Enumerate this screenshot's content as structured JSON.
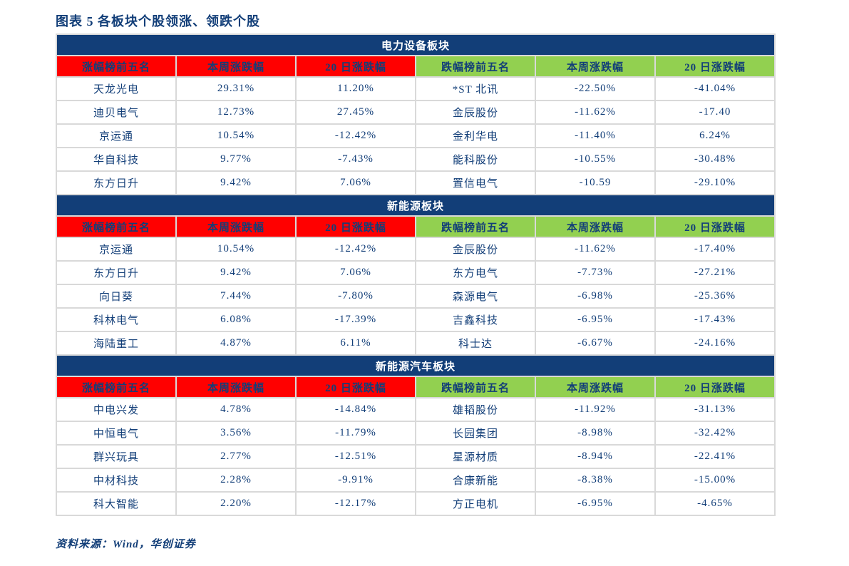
{
  "page": {
    "title": "图表 5 各板块个股领涨、领跌个股",
    "source_note": "资料来源：Wind，华创证券"
  },
  "colors": {
    "navy": "#123E78",
    "gainer_header_red": "#FF0000",
    "loser_header_green": "#92D050",
    "cell_border_gray": "#D9D9D9",
    "band_text": "#FFFFFF"
  },
  "table": {
    "columns": [
      "涨幅榜前五名",
      "本周涨跌幅",
      "20 日涨跌幅",
      "跌幅榜前五名",
      "本周涨跌幅",
      "20 日涨跌幅"
    ],
    "sections": [
      {
        "name": "电力设备板块",
        "rows": [
          [
            "天龙光电",
            "29.31%",
            "11.20%",
            "*ST 北讯",
            "-22.50%",
            "-41.04%"
          ],
          [
            "迪贝电气",
            "12.73%",
            "27.45%",
            "金辰股份",
            "-11.62%",
            "-17.40"
          ],
          [
            "京运通",
            "10.54%",
            "-12.42%",
            "金利华电",
            "-11.40%",
            "6.24%"
          ],
          [
            "华自科技",
            "9.77%",
            "-7.43%",
            "能科股份",
            "-10.55%",
            "-30.48%"
          ],
          [
            "东方日升",
            "9.42%",
            "7.06%",
            "置信电气",
            "-10.59",
            "-29.10%"
          ]
        ]
      },
      {
        "name": "新能源板块",
        "rows": [
          [
            "京运通",
            "10.54%",
            "-12.42%",
            "金辰股份",
            "-11.62%",
            "-17.40%"
          ],
          [
            "东方日升",
            "9.42%",
            "7.06%",
            "东方电气",
            "-7.73%",
            "-27.21%"
          ],
          [
            "向日葵",
            "7.44%",
            "-7.80%",
            "森源电气",
            "-6.98%",
            "-25.36%"
          ],
          [
            "科林电气",
            "6.08%",
            "-17.39%",
            "吉鑫科技",
            "-6.95%",
            "-17.43%"
          ],
          [
            "海陆重工",
            "4.87%",
            "6.11%",
            "科士达",
            "-6.67%",
            "-24.16%"
          ]
        ]
      },
      {
        "name": "新能源汽车板块",
        "rows": [
          [
            "中电兴发",
            "4.78%",
            "-14.84%",
            "雄韬股份",
            "-11.92%",
            "-31.13%"
          ],
          [
            "中恒电气",
            "3.56%",
            "-11.79%",
            "长园集团",
            "-8.98%",
            "-32.42%"
          ],
          [
            "群兴玩具",
            "2.77%",
            "-12.51%",
            "星源材质",
            "-8.94%",
            "-22.41%"
          ],
          [
            "中材科技",
            "2.28%",
            "-9.91%",
            "合康新能",
            "-8.38%",
            "-15.00%"
          ],
          [
            "科大智能",
            "2.20%",
            "-12.17%",
            "方正电机",
            "-6.95%",
            "-4.65%"
          ]
        ]
      }
    ]
  }
}
